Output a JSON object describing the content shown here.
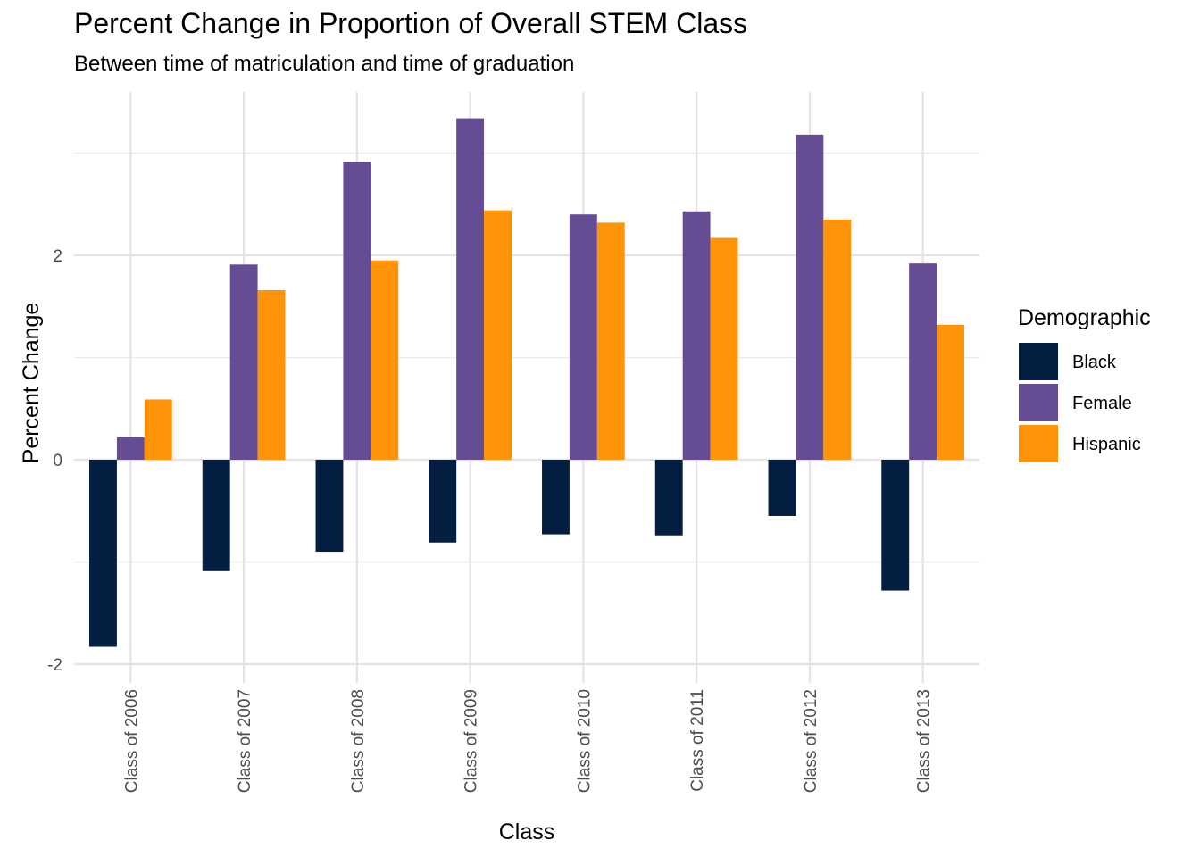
{
  "chart_data": {
    "type": "bar",
    "title": "Percent Change in Proportion of Overall STEM Class",
    "subtitle": "Between time of matriculation and time of graduation",
    "xlabel": "Class",
    "ylabel": "Percent Change",
    "categories": [
      "Class of 2006",
      "Class of 2007",
      "Class of 2008",
      "Class of 2009",
      "Class of 2010",
      "Class of 2011",
      "Class of 2012",
      "Class of 2013"
    ],
    "series": [
      {
        "name": "Black",
        "color": "#041e42",
        "values": [
          -1.83,
          -1.09,
          -0.9,
          -0.81,
          -0.73,
          -0.74,
          -0.55,
          -1.28
        ]
      },
      {
        "name": "Female",
        "color": "#654c93",
        "values": [
          0.22,
          1.91,
          2.91,
          3.34,
          2.4,
          2.43,
          3.18,
          1.92
        ]
      },
      {
        "name": "Hispanic",
        "color": "#ff9408",
        "values": [
          0.59,
          1.66,
          1.95,
          2.44,
          2.32,
          2.17,
          2.35,
          1.32
        ]
      }
    ],
    "yticks": [
      -2,
      0,
      2
    ],
    "ylim": [
      -2.1,
      3.75
    ],
    "grid": true,
    "legend_title": "Demographic",
    "legend_position": "right"
  }
}
